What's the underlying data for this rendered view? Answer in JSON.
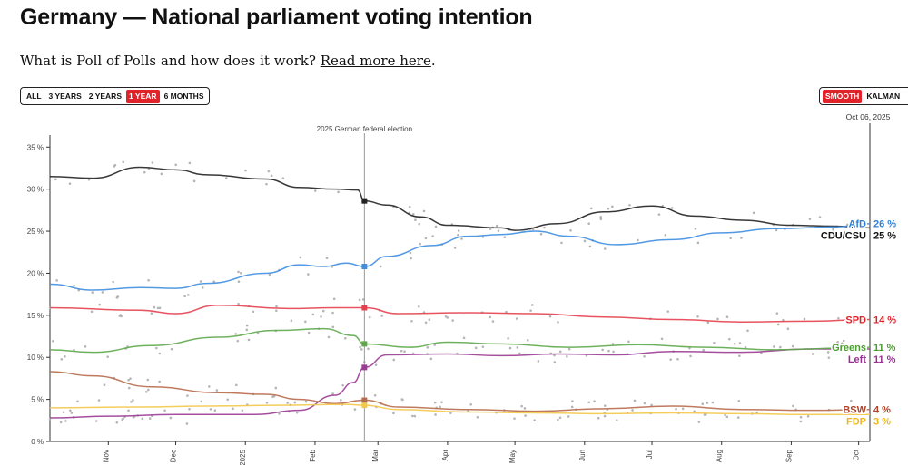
{
  "page": {
    "title": "Germany — National parliament voting intention",
    "intro_text": "What is Poll of Polls and how does it work?",
    "intro_link": "Read more here",
    "intro_end": "."
  },
  "controls": {
    "range": [
      {
        "label": "ALL",
        "active": false
      },
      {
        "label": "3 YEARS",
        "active": false
      },
      {
        "label": "2 YEARS",
        "active": false
      },
      {
        "label": "1 YEAR",
        "active": true
      },
      {
        "label": "6 MONTHS",
        "active": false
      }
    ],
    "mode": [
      {
        "label": "SMOOTH",
        "active": true
      },
      {
        "label": "KALMAN",
        "active": false
      }
    ]
  },
  "chart_data": {
    "type": "line",
    "date_range": [
      "2024-10-06",
      "2025-10-06"
    ],
    "ylim": [
      0,
      36
    ],
    "y_ticks": [
      0,
      5,
      10,
      15,
      20,
      25,
      30,
      35
    ],
    "y_tick_suffix": " %",
    "x_ticks": [
      {
        "date": "2024-11-01",
        "label": "Nov"
      },
      {
        "date": "2024-12-01",
        "label": "Dec"
      },
      {
        "date": "2025-01-01",
        "label": "2025"
      },
      {
        "date": "2025-02-01",
        "label": "Feb"
      },
      {
        "date": "2025-03-01",
        "label": "Mar"
      },
      {
        "date": "2025-04-01",
        "label": "Apr"
      },
      {
        "date": "2025-05-01",
        "label": "May"
      },
      {
        "date": "2025-06-01",
        "label": "Jun"
      },
      {
        "date": "2025-07-01",
        "label": "Jul"
      },
      {
        "date": "2025-08-01",
        "label": "Aug"
      },
      {
        "date": "2025-09-01",
        "label": "Sep"
      },
      {
        "date": "2025-10-01",
        "label": "Oct"
      }
    ],
    "event": {
      "date": "2025-02-23",
      "label": "2025 German federal election"
    },
    "cursor": {
      "date": "2025-10-06",
      "label": "Oct 06, 2025"
    },
    "series": [
      {
        "name": "CDU/CSU",
        "value_label": "25 %",
        "color": "#222222",
        "label_color": "#111111",
        "values": [
          [
            "2024-10-06",
            31.5
          ],
          [
            "2024-10-25",
            31.3
          ],
          [
            "2024-11-15",
            32.6
          ],
          [
            "2024-12-01",
            32.3
          ],
          [
            "2024-12-15",
            31.7
          ],
          [
            "2025-01-10",
            31.2
          ],
          [
            "2025-01-25",
            30.2
          ],
          [
            "2025-02-10",
            30.0
          ],
          [
            "2025-02-20",
            29.9
          ],
          [
            "2025-02-23",
            28.6
          ],
          [
            "2025-03-05",
            28.1
          ],
          [
            "2025-03-20",
            26.7
          ],
          [
            "2025-04-01",
            25.7
          ],
          [
            "2025-04-25",
            25.4
          ],
          [
            "2025-05-01",
            25.1
          ],
          [
            "2025-05-20",
            25.9
          ],
          [
            "2025-06-10",
            27.3
          ],
          [
            "2025-07-01",
            28.0
          ],
          [
            "2025-07-20",
            26.8
          ],
          [
            "2025-08-10",
            26.3
          ],
          [
            "2025-09-01",
            25.7
          ],
          [
            "2025-09-20",
            25.6
          ],
          [
            "2025-10-06",
            25.4
          ]
        ]
      },
      {
        "name": "AfD",
        "value_label": "26 %",
        "color": "#3f8ee0",
        "label_color": "#2f7fd6",
        "values": [
          [
            "2024-10-06",
            18.7
          ],
          [
            "2024-10-25",
            18.0
          ],
          [
            "2024-11-15",
            18.3
          ],
          [
            "2024-12-01",
            18.2
          ],
          [
            "2024-12-15",
            18.8
          ],
          [
            "2025-01-10",
            20.0
          ],
          [
            "2025-01-25",
            21.0
          ],
          [
            "2025-02-05",
            20.8
          ],
          [
            "2025-02-15",
            21.2
          ],
          [
            "2025-02-23",
            20.8
          ],
          [
            "2025-03-05",
            22.0
          ],
          [
            "2025-03-25",
            23.3
          ],
          [
            "2025-04-10",
            24.4
          ],
          [
            "2025-04-25",
            24.6
          ],
          [
            "2025-05-10",
            25.0
          ],
          [
            "2025-05-25",
            24.4
          ],
          [
            "2025-06-15",
            23.4
          ],
          [
            "2025-07-10",
            24.0
          ],
          [
            "2025-08-01",
            24.8
          ],
          [
            "2025-08-25",
            25.3
          ],
          [
            "2025-09-20",
            25.5
          ],
          [
            "2025-10-06",
            25.9
          ]
        ]
      },
      {
        "name": "SPD",
        "value_label": "14 %",
        "color": "#e6404f",
        "label_color": "#e0222b",
        "values": [
          [
            "2024-10-06",
            15.9
          ],
          [
            "2024-11-15",
            15.6
          ],
          [
            "2024-12-01",
            15.2
          ],
          [
            "2024-12-20",
            16.2
          ],
          [
            "2025-01-20",
            15.8
          ],
          [
            "2025-02-10",
            15.9
          ],
          [
            "2025-02-23",
            15.9
          ],
          [
            "2025-03-10",
            15.2
          ],
          [
            "2025-04-10",
            15.3
          ],
          [
            "2025-05-10",
            15.2
          ],
          [
            "2025-06-10",
            14.8
          ],
          [
            "2025-07-10",
            14.5
          ],
          [
            "2025-08-10",
            14.2
          ],
          [
            "2025-09-10",
            14.3
          ],
          [
            "2025-10-06",
            14.5
          ]
        ]
      },
      {
        "name": "Left",
        "value_label": "11 %",
        "color": "#9b3b93",
        "label_color": "#9b2f96",
        "values": [
          [
            "2024-10-06",
            2.8
          ],
          [
            "2024-11-01",
            3.0
          ],
          [
            "2024-12-01",
            3.2
          ],
          [
            "2025-01-05",
            3.2
          ],
          [
            "2025-01-25",
            3.7
          ],
          [
            "2025-02-10",
            5.5
          ],
          [
            "2025-02-18",
            7.0
          ],
          [
            "2025-02-23",
            8.8
          ],
          [
            "2025-03-05",
            10.3
          ],
          [
            "2025-04-01",
            10.4
          ],
          [
            "2025-04-25",
            10.2
          ],
          [
            "2025-05-20",
            10.4
          ],
          [
            "2025-06-15",
            10.3
          ],
          [
            "2025-07-10",
            10.7
          ],
          [
            "2025-08-10",
            10.6
          ],
          [
            "2025-09-10",
            11.0
          ],
          [
            "2025-10-06",
            11.0
          ]
        ]
      },
      {
        "name": "Greens",
        "value_label": "11 %",
        "color": "#5ea94a",
        "label_color": "#4a9d2f",
        "values": [
          [
            "2024-10-06",
            10.9
          ],
          [
            "2024-10-25",
            10.6
          ],
          [
            "2024-11-20",
            11.4
          ],
          [
            "2024-12-20",
            12.4
          ],
          [
            "2025-01-15",
            13.2
          ],
          [
            "2025-02-05",
            13.4
          ],
          [
            "2025-02-18",
            12.6
          ],
          [
            "2025-02-23",
            11.6
          ],
          [
            "2025-03-15",
            11.2
          ],
          [
            "2025-04-01",
            11.8
          ],
          [
            "2025-04-25",
            11.6
          ],
          [
            "2025-05-25",
            11.2
          ],
          [
            "2025-06-25",
            11.5
          ],
          [
            "2025-07-25",
            11.2
          ],
          [
            "2025-08-25",
            10.9
          ],
          [
            "2025-09-25",
            11.1
          ],
          [
            "2025-10-06",
            11.2
          ]
        ]
      },
      {
        "name": "BSW",
        "value_label": "4 %",
        "color": "#b86a4e",
        "label_color": "#b2442a",
        "values": [
          [
            "2024-10-06",
            8.3
          ],
          [
            "2024-10-25",
            7.8
          ],
          [
            "2024-11-20",
            6.5
          ],
          [
            "2024-12-20",
            5.8
          ],
          [
            "2025-01-10",
            5.6
          ],
          [
            "2025-01-25",
            5.0
          ],
          [
            "2025-02-10",
            4.5
          ],
          [
            "2025-02-23",
            4.9
          ],
          [
            "2025-03-10",
            4.1
          ],
          [
            "2025-04-10",
            3.8
          ],
          [
            "2025-05-10",
            3.6
          ],
          [
            "2025-06-10",
            3.9
          ],
          [
            "2025-07-10",
            4.2
          ],
          [
            "2025-08-10",
            3.8
          ],
          [
            "2025-09-10",
            3.7
          ],
          [
            "2025-10-06",
            3.8
          ]
        ]
      },
      {
        "name": "FDP",
        "value_label": "3 %",
        "color": "#f3c84a",
        "label_color": "#f0b622",
        "values": [
          [
            "2024-10-06",
            4.0
          ],
          [
            "2024-11-15",
            4.1
          ],
          [
            "2024-12-15",
            4.2
          ],
          [
            "2025-01-15",
            4.3
          ],
          [
            "2025-02-15",
            4.4
          ],
          [
            "2025-02-23",
            4.3
          ],
          [
            "2025-03-10",
            3.8
          ],
          [
            "2025-04-10",
            3.5
          ],
          [
            "2025-05-10",
            3.4
          ],
          [
            "2025-06-10",
            3.3
          ],
          [
            "2025-07-10",
            3.4
          ],
          [
            "2025-08-10",
            3.3
          ],
          [
            "2025-09-10",
            3.2
          ],
          [
            "2025-10-06",
            3.2
          ]
        ]
      }
    ]
  }
}
